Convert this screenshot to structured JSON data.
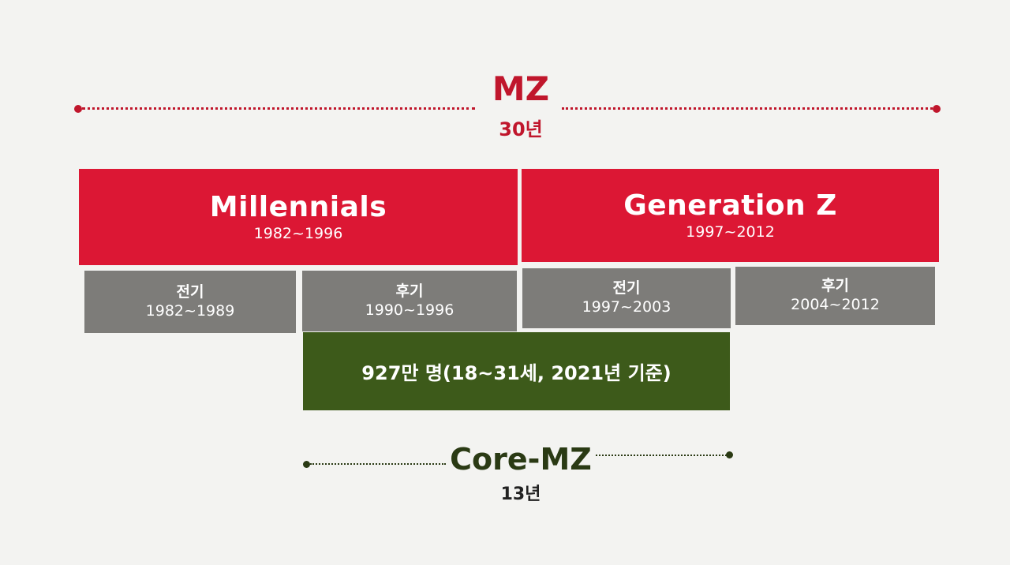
{
  "mz": {
    "title": "MZ",
    "span": "30년"
  },
  "generations": [
    {
      "name": "Millennials",
      "years": "1982~1996"
    },
    {
      "name": "Generation Z",
      "years": "1997~2012"
    }
  ],
  "periods": [
    {
      "label": "전기",
      "years": "1982~1989"
    },
    {
      "label": "후기",
      "years": "1990~1996"
    },
    {
      "label": "전기",
      "years": "1997~2003"
    },
    {
      "label": "후기",
      "years": "2004~2012"
    }
  ],
  "core_population": "927만 명(18~31세, 2021년 기준)",
  "core_mz": {
    "title": "Core-MZ",
    "span": "13년"
  },
  "colors": {
    "red": "#dc1734",
    "gray": "#7d7c79",
    "green": "#3d5a1a",
    "core_text": "#2a3a14"
  }
}
